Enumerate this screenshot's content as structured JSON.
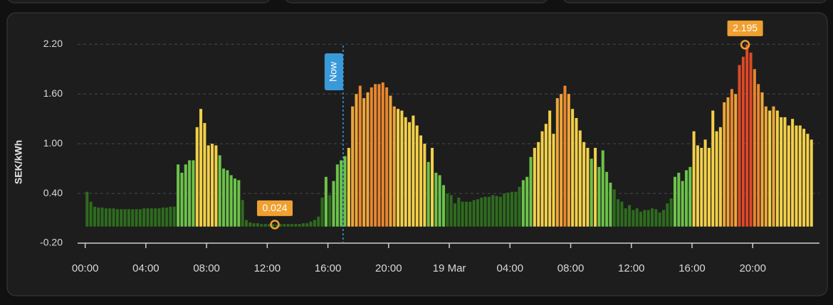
{
  "chart_data": {
    "type": "bar",
    "y_label": "SEK/kWh",
    "ylim": [
      -0.2,
      2.4
    ],
    "yticks": [
      {
        "value": -0.2,
        "label": "-0.20"
      },
      {
        "value": 0.4,
        "label": "0.40"
      },
      {
        "value": 1,
        "label": "1.00"
      },
      {
        "value": 1.6,
        "label": "1.60"
      },
      {
        "value": 2.2,
        "label": "2.20"
      }
    ],
    "xlim": [
      -0.5,
      48.4
    ],
    "xticks": [
      {
        "value": 0,
        "label": "00:00"
      },
      {
        "value": 4,
        "label": "04:00"
      },
      {
        "value": 8,
        "label": "08:00"
      },
      {
        "value": 12,
        "label": "12:00"
      },
      {
        "value": 16,
        "label": "16:00"
      },
      {
        "value": 20,
        "label": "20:00"
      },
      {
        "value": 24,
        "label": "19 Mar"
      },
      {
        "value": 28,
        "label": "04:00"
      },
      {
        "value": 32,
        "label": "08:00"
      },
      {
        "value": 36,
        "label": "12:00"
      },
      {
        "value": 40,
        "label": "16:00"
      },
      {
        "value": 44,
        "label": "20:00"
      }
    ],
    "grid": true,
    "x": [
      0,
      0.25,
      0.5,
      0.75,
      1,
      1.25,
      1.5,
      1.75,
      2,
      2.25,
      2.5,
      2.75,
      3,
      3.25,
      3.5,
      3.75,
      4,
      4.25,
      4.5,
      4.75,
      5,
      5.25,
      5.5,
      5.75,
      6,
      6.25,
      6.5,
      6.75,
      7,
      7.25,
      7.5,
      7.75,
      8,
      8.25,
      8.5,
      8.75,
      9,
      9.25,
      9.5,
      9.75,
      10,
      10.25,
      10.5,
      10.75,
      11,
      11.25,
      11.5,
      11.75,
      12,
      12.25,
      12.5,
      12.75,
      13,
      13.25,
      13.5,
      13.75,
      14,
      14.25,
      14.5,
      14.75,
      15,
      15.25,
      15.5,
      15.75,
      16,
      16.25,
      16.5,
      16.75,
      17,
      17.25,
      17.5,
      17.75,
      18,
      18.25,
      18.5,
      18.75,
      19,
      19.25,
      19.5,
      19.75,
      20,
      20.25,
      20.5,
      20.75,
      21,
      21.25,
      21.5,
      21.75,
      22,
      22.25,
      22.5,
      22.75,
      23,
      23.25,
      23.5,
      23.75,
      24,
      24.25,
      24.5,
      24.75,
      25,
      25.25,
      25.5,
      25.75,
      26,
      26.25,
      26.5,
      26.75,
      27,
      27.25,
      27.5,
      27.75,
      28,
      28.25,
      28.5,
      28.75,
      29,
      29.25,
      29.5,
      29.75,
      30,
      30.25,
      30.5,
      30.75,
      31,
      31.25,
      31.5,
      31.75,
      32,
      32.25,
      32.5,
      32.75,
      33,
      33.25,
      33.5,
      33.75,
      34,
      34.25,
      34.5,
      34.75,
      35,
      35.25,
      35.5,
      35.75,
      36,
      36.25,
      36.5,
      36.75,
      37,
      37.25,
      37.5,
      37.75,
      38,
      38.25,
      38.5,
      38.75,
      39,
      39.25,
      39.5,
      39.75,
      40,
      40.25,
      40.5,
      40.75,
      41,
      41.25,
      41.5,
      41.75,
      42,
      42.25,
      42.5,
      42.75,
      43,
      43.25,
      43.5,
      43.75,
      44,
      44.25,
      44.5,
      44.75,
      45,
      45.25,
      45.5,
      45.75,
      46,
      46.25,
      46.5,
      46.75,
      47,
      47.25,
      47.5,
      47.75
    ],
    "values": [
      0.42,
      0.3,
      0.24,
      0.23,
      0.23,
      0.22,
      0.22,
      0.22,
      0.21,
      0.21,
      0.21,
      0.21,
      0.21,
      0.21,
      0.21,
      0.22,
      0.22,
      0.22,
      0.22,
      0.22,
      0.23,
      0.23,
      0.24,
      0.24,
      0.75,
      0.65,
      0.75,
      0.8,
      0.8,
      1.2,
      1.42,
      1.25,
      0.98,
      1,
      0.98,
      0.86,
      0.7,
      0.68,
      0.62,
      0.58,
      0.56,
      0.32,
      0.08,
      0.05,
      0.04,
      0.04,
      0.03,
      0.03,
      0.03,
      0.03,
      0.024,
      0.03,
      0.03,
      0.03,
      0.03,
      0.03,
      0.03,
      0.04,
      0.04,
      0.06,
      0.08,
      0.12,
      0.35,
      0.6,
      0.38,
      0.55,
      0.75,
      0.8,
      0.85,
      0.95,
      1.45,
      1.6,
      1.7,
      1.55,
      1.62,
      1.68,
      1.72,
      1.72,
      1.74,
      1.68,
      1.58,
      1.45,
      1.42,
      1.4,
      1.32,
      1.26,
      1.34,
      1.22,
      1.1,
      1,
      0.78,
      0.95,
      0.65,
      0.62,
      0.5,
      0.4,
      0.38,
      0.28,
      0.35,
      0.3,
      0.3,
      0.3,
      0.32,
      0.33,
      0.35,
      0.36,
      0.36,
      0.38,
      0.37,
      0.36,
      0.4,
      0.41,
      0.42,
      0.42,
      0.48,
      0.56,
      0.6,
      0.84,
      0.95,
      1.02,
      1.15,
      1.24,
      1.4,
      1.12,
      1.55,
      1.6,
      1.7,
      1.6,
      1.42,
      1.31,
      1.16,
      1.02,
      0.95,
      0.82,
      0.95,
      0.72,
      0.92,
      0.66,
      0.53,
      0.45,
      0.33,
      0.3,
      0.22,
      0.26,
      0.2,
      0.22,
      0.18,
      0.2,
      0.2,
      0.22,
      0.21,
      0.17,
      0.2,
      0.28,
      0.34,
      0.6,
      0.65,
      0.55,
      0.68,
      0.72,
      1.15,
      0.98,
      0.95,
      1.05,
      0.95,
      1.4,
      1.15,
      1.2,
      1.5,
      1.56,
      1.66,
      1.6,
      1.95,
      2.05,
      2.195,
      2.1,
      1.9,
      1.72,
      1.62,
      1.45,
      1.4,
      1.45,
      1.4,
      1.32,
      1.32,
      1.22,
      1.3,
      1.22,
      1.22,
      1.18,
      1.12,
      1.05
    ],
    "colors": [
      "#2e6b1e",
      "#2e6b1e",
      "#2e6b1e",
      "#2e6b1e",
      "#2e6b1e",
      "#2e6b1e",
      "#2e6b1e",
      "#2e6b1e",
      "#2e6b1e",
      "#2e6b1e",
      "#2e6b1e",
      "#2e6b1e",
      "#2e6b1e",
      "#2e6b1e",
      "#2e6b1e",
      "#2e6b1e",
      "#2e6b1e",
      "#2e6b1e",
      "#2e6b1e",
      "#2e6b1e",
      "#2e6b1e",
      "#2e6b1e",
      "#2e6b1e",
      "#2e6b1e",
      "#6cc24a",
      "#6cc24a",
      "#6cc24a",
      "#6cc24a",
      "#6cc24a",
      "#f3d04a",
      "#f3d04a",
      "#f3d04a",
      "#f3d04a",
      "#f3d04a",
      "#f3d04a",
      "#6cc24a",
      "#6cc24a",
      "#6cc24a",
      "#6cc24a",
      "#6cc24a",
      "#6cc24a",
      "#2e6b1e",
      "#2e6b1e",
      "#2e6b1e",
      "#2e6b1e",
      "#2e6b1e",
      "#2e6b1e",
      "#2e6b1e",
      "#2e6b1e",
      "#2e6b1e",
      "#2e6b1e",
      "#2e6b1e",
      "#2e6b1e",
      "#2e6b1e",
      "#2e6b1e",
      "#2e6b1e",
      "#2e6b1e",
      "#2e6b1e",
      "#2e6b1e",
      "#2e6b1e",
      "#2e6b1e",
      "#2e6b1e",
      "#2e6b1e",
      "#6cc24a",
      "#2e6b1e",
      "#6cc24a",
      "#6cc24a",
      "#6cc24a",
      "#6cc24a",
      "#f3d04a",
      "#eea63a",
      "#eea63a",
      "#e8862e",
      "#eea63a",
      "#eea63a",
      "#e8862e",
      "#e8862e",
      "#e8862e",
      "#e8862e",
      "#e8862e",
      "#eea63a",
      "#eea63a",
      "#f3d04a",
      "#f3d04a",
      "#f3d04a",
      "#f3d04a",
      "#f3d04a",
      "#f3d04a",
      "#f3d04a",
      "#f3d04a",
      "#6cc24a",
      "#f3d04a",
      "#6cc24a",
      "#6cc24a",
      "#6cc24a",
      "#2e6b1e",
      "#2e6b1e",
      "#2e6b1e",
      "#2e6b1e",
      "#2e6b1e",
      "#2e6b1e",
      "#2e6b1e",
      "#2e6b1e",
      "#2e6b1e",
      "#2e6b1e",
      "#2e6b1e",
      "#2e6b1e",
      "#2e6b1e",
      "#2e6b1e",
      "#2e6b1e",
      "#2e6b1e",
      "#2e6b1e",
      "#2e6b1e",
      "#2e6b1e",
      "#2e6b1e",
      "#6cc24a",
      "#6cc24a",
      "#6cc24a",
      "#f3d04a",
      "#f3d04a",
      "#f3d04a",
      "#f3d04a",
      "#f3d04a",
      "#f3d04a",
      "#eea63a",
      "#eea63a",
      "#e8862e",
      "#eea63a",
      "#f3d04a",
      "#f3d04a",
      "#f3d04a",
      "#f3d04a",
      "#f3d04a",
      "#6cc24a",
      "#f3d04a",
      "#6cc24a",
      "#6cc24a",
      "#6cc24a",
      "#6cc24a",
      "#2e6b1e",
      "#2e6b1e",
      "#2e6b1e",
      "#2e6b1e",
      "#2e6b1e",
      "#2e6b1e",
      "#2e6b1e",
      "#2e6b1e",
      "#2e6b1e",
      "#2e6b1e",
      "#2e6b1e",
      "#2e6b1e",
      "#2e6b1e",
      "#2e6b1e",
      "#2e6b1e",
      "#2e6b1e",
      "#6cc24a",
      "#6cc24a",
      "#6cc24a",
      "#6cc24a",
      "#6cc24a",
      "#f3d04a",
      "#f3d04a",
      "#f3d04a",
      "#f3d04a",
      "#f3d04a",
      "#f3d04a",
      "#f3d04a",
      "#f3d04a",
      "#eea63a",
      "#eea63a",
      "#e8862e",
      "#eea63a",
      "#dd4a28",
      "#dd4a28",
      "#dd4a28",
      "#dd4a28",
      "#e8862e",
      "#e8862e",
      "#eea63a",
      "#eea63a",
      "#f3d04a",
      "#eea63a",
      "#f3d04a",
      "#f3d04a",
      "#f3d04a",
      "#f3d04a",
      "#f3d04a",
      "#f3d04a",
      "#f3d04a",
      "#f3d04a",
      "#f3d04a",
      "#f3d04a"
    ],
    "annotations": [
      {
        "text": "0.024",
        "x": 12.5,
        "y": 0.024
      },
      {
        "text": "2.195",
        "x": 43.5,
        "y": 2.195
      }
    ],
    "now": {
      "label": "Now",
      "x": 17
    }
  }
}
